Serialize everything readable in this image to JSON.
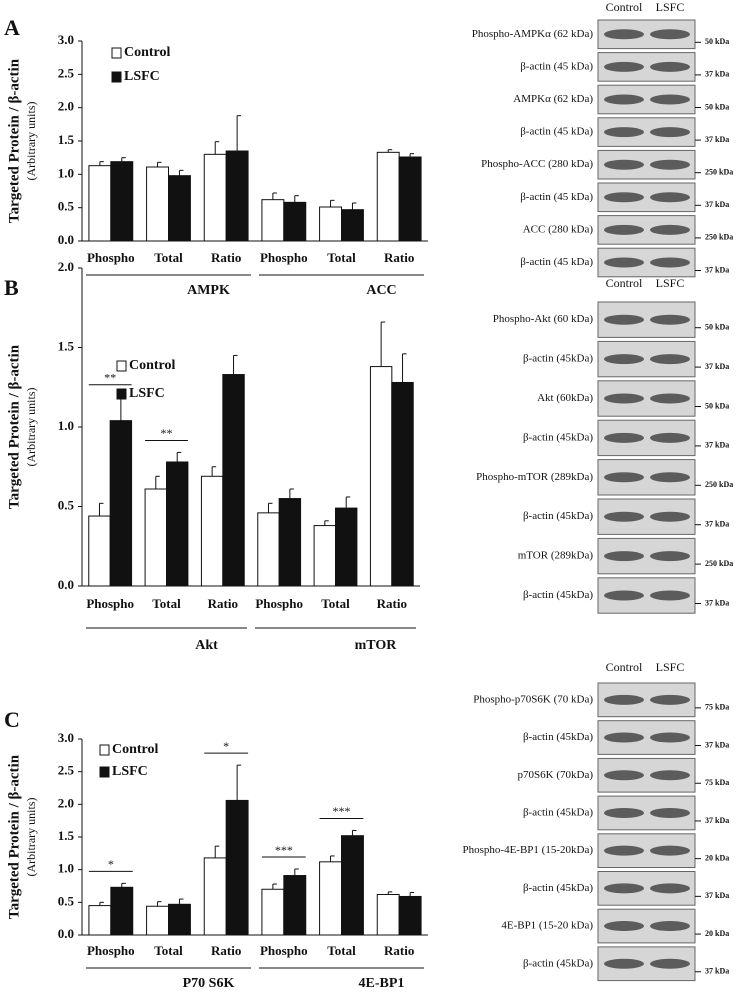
{
  "chart_data": [
    {
      "type": "bar",
      "panel": "A",
      "y_label": "Targeted Protein / β-actin",
      "y_sublabel": "(Arbitrary units)",
      "categories": [
        "Phospho",
        "Total",
        "Ratio",
        "Phospho",
        "Total",
        "Ratio"
      ],
      "groups": [
        "AMPK",
        "ACC"
      ],
      "series": [
        {
          "name": "Control",
          "color": "#ffffff",
          "values": [
            1.13,
            1.11,
            1.3,
            0.62,
            0.51,
            1.33
          ],
          "errors": [
            0.06,
            0.07,
            0.19,
            0.1,
            0.1,
            0.04
          ]
        },
        {
          "name": "LSFC",
          "color": "#111111",
          "values": [
            1.19,
            0.98,
            1.35,
            0.58,
            0.47,
            1.26
          ],
          "errors": [
            0.06,
            0.08,
            0.53,
            0.1,
            0.1,
            0.05
          ]
        }
      ],
      "significance": [
        null,
        null,
        null,
        null,
        null,
        null
      ],
      "ylim": [
        0,
        3
      ],
      "yticks": [
        {
          "value": 0,
          "label": "0.0"
        },
        {
          "value": 0.5,
          "label": "0.5"
        },
        {
          "value": 1,
          "label": "1.0"
        },
        {
          "value": 1.5,
          "label": "1.5"
        },
        {
          "value": 2,
          "label": "2.0"
        },
        {
          "value": 2.5,
          "label": "2.5"
        },
        {
          "value": 3,
          "label": "3.0"
        }
      ]
    },
    {
      "type": "bar",
      "panel": "B",
      "y_label": "Targeted Protein / β-actin",
      "y_sublabel": "(Arbitrary units)",
      "categories": [
        "Phospho",
        "Total",
        "Ratio",
        "Phospho",
        "Total",
        "Ratio"
      ],
      "groups": [
        "Akt",
        "mTOR"
      ],
      "series": [
        {
          "name": "Control",
          "color": "#ffffff",
          "values": [
            0.44,
            0.61,
            0.69,
            0.46,
            0.38,
            1.38
          ],
          "errors": [
            0.08,
            0.08,
            0.06,
            0.06,
            0.03,
            0.28
          ]
        },
        {
          "name": "LSFC",
          "color": "#111111",
          "values": [
            1.04,
            0.78,
            1.33,
            0.55,
            0.49,
            1.28
          ],
          "errors": [
            0.15,
            0.06,
            0.12,
            0.06,
            0.07,
            0.18
          ]
        }
      ],
      "significance": [
        "**",
        "**",
        null,
        null,
        null,
        null
      ],
      "ylim": [
        0,
        2
      ],
      "yticks": [
        {
          "value": 0,
          "label": "0.0"
        },
        {
          "value": 0.5,
          "label": "0.5"
        },
        {
          "value": 1,
          "label": "1.0"
        },
        {
          "value": 1.5,
          "label": "1.5"
        },
        {
          "value": 2,
          "label": "2.0"
        }
      ]
    },
    {
      "type": "bar",
      "panel": "C",
      "y_label": "Targeted Protein / β-actin",
      "y_sublabel": "(Arbitrary units)",
      "categories": [
        "Phospho",
        "Total",
        "Ratio",
        "Phospho",
        "Total",
        "Ratio"
      ],
      "groups": [
        "P70 S6K",
        "4E-BP1"
      ],
      "series": [
        {
          "name": "Control",
          "color": "#ffffff",
          "values": [
            0.45,
            0.44,
            1.18,
            0.7,
            1.12,
            0.62
          ],
          "errors": [
            0.05,
            0.07,
            0.18,
            0.08,
            0.09,
            0.04
          ]
        },
        {
          "name": "LSFC",
          "color": "#111111",
          "values": [
            0.73,
            0.47,
            2.06,
            0.91,
            1.52,
            0.59
          ],
          "errors": [
            0.06,
            0.08,
            0.54,
            0.1,
            0.08,
            0.06
          ]
        }
      ],
      "significance": [
        "*",
        null,
        "*",
        "***",
        "***",
        null
      ],
      "ylim": [
        0,
        3
      ],
      "yticks": [
        {
          "value": 0,
          "label": "0.0"
        },
        {
          "value": 0.5,
          "label": "0.5"
        },
        {
          "value": 1,
          "label": "1.0"
        },
        {
          "value": 1.5,
          "label": "1.5"
        },
        {
          "value": 2,
          "label": "2.0"
        },
        {
          "value": 2.5,
          "label": "2.5"
        },
        {
          "value": 3,
          "label": "3.0"
        }
      ]
    }
  ],
  "blots": [
    {
      "columns": [
        "Control",
        "LSFC"
      ],
      "rows": [
        {
          "label": "Phospho-AMPKα (62 kDa)",
          "marker": "50 kDa"
        },
        {
          "label": "β-actin  (45 kDa)",
          "marker": "37 kDa"
        },
        {
          "label": "AMPKα (62 kDa)",
          "marker": "50 kDa"
        },
        {
          "label": "β-actin (45 kDa)",
          "marker": "37 kDa"
        },
        {
          "label": "Phospho-ACC (280 kDa)",
          "marker": "250 kDa"
        },
        {
          "label": "β-actin (45 kDa)",
          "marker": "37 kDa"
        },
        {
          "label": "ACC (280 kDa)",
          "marker": "250 kDa"
        },
        {
          "label": "β-actin (45 kDa)",
          "marker": "37 kDa"
        }
      ]
    },
    {
      "columns": [
        "Control",
        "LSFC"
      ],
      "rows": [
        {
          "label": "Phospho-Akt (60 kDa)",
          "marker": "50 kDa"
        },
        {
          "label": "β-actin (45kDa)",
          "marker": "37 kDa"
        },
        {
          "label": "Akt (60kDa)",
          "marker": "50 kDa"
        },
        {
          "label": "β-actin (45kDa)",
          "marker": "37 kDa"
        },
        {
          "label": "Phospho-mTOR (289kDa)",
          "marker": "250 kDa"
        },
        {
          "label": "β-actin (45kDa)",
          "marker": "37 kDa"
        },
        {
          "label": "mTOR (289kDa)",
          "marker": "250 kDa"
        },
        {
          "label": "β-actin (45kDa)",
          "marker": "37 kDa"
        }
      ]
    },
    {
      "columns": [
        "Control",
        "LSFC"
      ],
      "rows": [
        {
          "label": "Phospho-p70S6K (70 kDa)",
          "marker": "75 kDa"
        },
        {
          "label": "β-actin (45kDa)",
          "marker": "37 kDa"
        },
        {
          "label": "p70S6K (70kDa)",
          "marker": "75 kDa"
        },
        {
          "label": "β-actin (45kDa)",
          "marker": "37 kDa"
        },
        {
          "label": "Phospho-4E-BP1 (15-20kDa)",
          "marker": "20 kDa"
        },
        {
          "label": "β-actin (45kDa)",
          "marker": "37 kDa"
        },
        {
          "label": "4E-BP1 (15-20 kDa)",
          "marker": "20 kDa"
        },
        {
          "label": "β-actin (45kDa)",
          "marker": "37 kDa"
        }
      ]
    }
  ]
}
